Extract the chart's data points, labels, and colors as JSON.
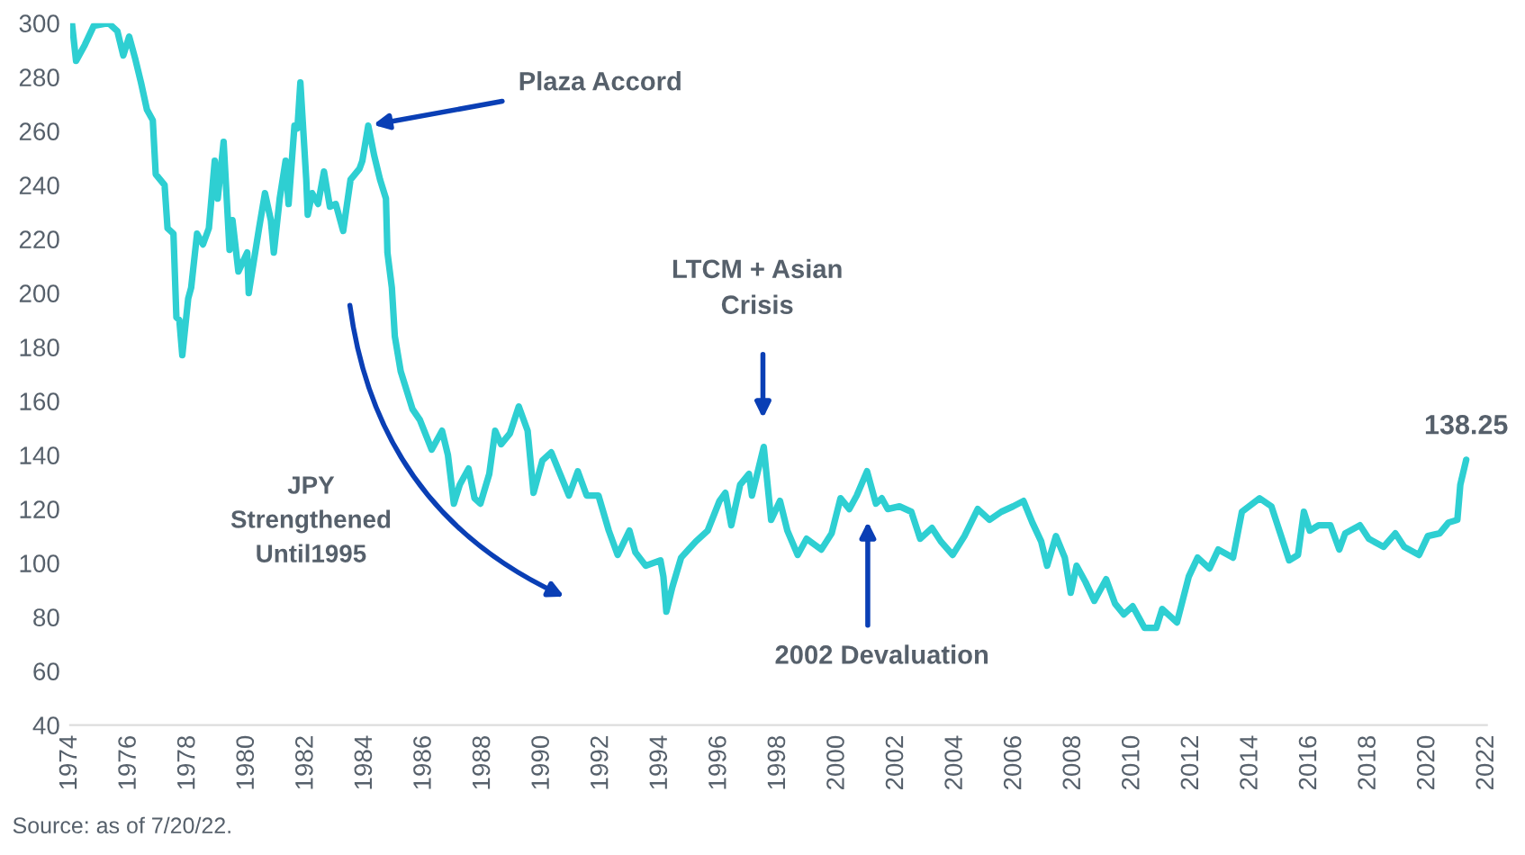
{
  "chart_data": {
    "type": "line",
    "x": [
      1974.06,
      1974.2,
      1974.5,
      1974.8,
      1975.3,
      1975.6,
      1975.8,
      1976.0,
      1976.2,
      1976.4,
      1976.6,
      1976.8,
      1976.9,
      1977.2,
      1977.3,
      1977.5,
      1977.6,
      1977.7,
      1977.8,
      1978.0,
      1978.1,
      1978.3,
      1978.5,
      1978.7,
      1978.9,
      1979.0,
      1979.2,
      1979.4,
      1979.5,
      1979.7,
      1980.0,
      1980.05,
      1980.4,
      1980.6,
      1980.8,
      1980.9,
      1981.1,
      1981.3,
      1981.4,
      1981.6,
      1981.7,
      1981.8,
      1982.0,
      1982.05,
      1982.2,
      1982.4,
      1982.6,
      1982.8,
      1983.0,
      1983.25,
      1983.5,
      1983.8,
      1983.9,
      1984.1,
      1984.3,
      1984.5,
      1984.7,
      1984.75,
      1984.9,
      1985.0,
      1985.2,
      1985.4,
      1985.6,
      1985.85,
      1986.25,
      1986.6,
      1986.8,
      1987.0,
      1987.2,
      1987.5,
      1987.7,
      1987.9,
      1988.2,
      1988.4,
      1988.6,
      1988.9,
      1989.2,
      1989.5,
      1989.7,
      1990.0,
      1990.3,
      1990.6,
      1990.9,
      1991.2,
      1991.5,
      1991.9,
      1992.25,
      1992.55,
      1992.95,
      1993.15,
      1993.5,
      1994.0,
      1994.1,
      1994.2,
      1994.4,
      1994.7,
      1995.2,
      1995.6,
      1996.0,
      1996.2,
      1996.4,
      1996.7,
      1997.0,
      1997.1,
      1997.5,
      1997.75,
      1998.05,
      1998.3,
      1998.65,
      1998.95,
      1999.45,
      1999.8,
      2000.1,
      2000.4,
      2000.65,
      2001.0,
      2001.3,
      2001.5,
      2001.7,
      2002.1,
      2002.5,
      2002.8,
      2003.2,
      2003.5,
      2003.9,
      2004.3,
      2004.75,
      2005.15,
      2005.55,
      2005.95,
      2006.3,
      2006.6,
      2006.9,
      2007.1,
      2007.4,
      2007.7,
      2007.9,
      2008.1,
      2008.4,
      2008.7,
      2009.1,
      2009.4,
      2009.7,
      2010.0,
      2010.4,
      2010.8,
      2011.0,
      2011.5,
      2011.9,
      2012.2,
      2012.6,
      2012.9,
      2013.4,
      2013.7,
      2014.3,
      2014.7,
      2015.0,
      2015.3,
      2015.6,
      2015.8,
      2016.0,
      2016.3,
      2016.7,
      2017.0,
      2017.2,
      2017.7,
      2018.0,
      2018.5,
      2018.9,
      2019.2,
      2019.7,
      2020.0,
      2020.4,
      2020.7,
      2021.0,
      2021.1,
      2021.3
    ],
    "series": [
      {
        "color": "#2ecfd2",
        "values": [
          300,
          286,
          292,
          299,
          300,
          297,
          288,
          295,
          287,
          278,
          268,
          264,
          244,
          240,
          224,
          222,
          191,
          190,
          177,
          198,
          202,
          222,
          218,
          224,
          249,
          235,
          256,
          216,
          227,
          208,
          215,
          200,
          224,
          237,
          227,
          215,
          235,
          249,
          233,
          262,
          261,
          278,
          242,
          229,
          237,
          233,
          245,
          232,
          233,
          223,
          242,
          246,
          249,
          262,
          251,
          242,
          235,
          215,
          202,
          184,
          171,
          164,
          157,
          153,
          142,
          149,
          140,
          122,
          129,
          135,
          124,
          122,
          133,
          149,
          144,
          148,
          158,
          149,
          126,
          138,
          141,
          133,
          125,
          134,
          125,
          125,
          112,
          103,
          112,
          104,
          99,
          101,
          95,
          82,
          91,
          102,
          108,
          112,
          123,
          126,
          114,
          129,
          133,
          125,
          143,
          116,
          123,
          112,
          103,
          109,
          105,
          111,
          124,
          120,
          125,
          134,
          122,
          124,
          120,
          121,
          119,
          109,
          113,
          108,
          103,
          110,
          120,
          116,
          119,
          121,
          123,
          115,
          108,
          99,
          110,
          102,
          89,
          99,
          93,
          86,
          94,
          85,
          81,
          84,
          76,
          76,
          83,
          78,
          95,
          102,
          98,
          105,
          102,
          119,
          124,
          121,
          111,
          101,
          103,
          119,
          112,
          114,
          114,
          105,
          111,
          114,
          109,
          106,
          111,
          106,
          103,
          110,
          111,
          115,
          116,
          129,
          138.25
        ],
        "value_labels": [
          null,
          null,
          null,
          null,
          null,
          null,
          null,
          null,
          null,
          null,
          null,
          null,
          null,
          null,
          null,
          null,
          null,
          null,
          null,
          null,
          null,
          null,
          null,
          null,
          null,
          null,
          null,
          null,
          null,
          null,
          null,
          null,
          null,
          null,
          null,
          null,
          null,
          null,
          null,
          null,
          null,
          null,
          null,
          null,
          null,
          null,
          null,
          null,
          null,
          null,
          null,
          null,
          null,
          null,
          null,
          null,
          null,
          null,
          null,
          null,
          null,
          null,
          null,
          null,
          null,
          null,
          null,
          null,
          null,
          null,
          null,
          null,
          null,
          null,
          null,
          null,
          null,
          null,
          null,
          null,
          null,
          null,
          null,
          null,
          null,
          null,
          null,
          null,
          null,
          null,
          null,
          null,
          null,
          null,
          null,
          null,
          null,
          null,
          null,
          null,
          null,
          null,
          null,
          null,
          null,
          null,
          null,
          null,
          null,
          null,
          null,
          null,
          null,
          null,
          null,
          null,
          null,
          null,
          null,
          null,
          null,
          null,
          null,
          null,
          null,
          null,
          null,
          null,
          null,
          null,
          null,
          null,
          null,
          null,
          null,
          null,
          null,
          null,
          null,
          null,
          null,
          null,
          null,
          null,
          null,
          null,
          null,
          null,
          null,
          null,
          null,
          null,
          null,
          null,
          null,
          null,
          null,
          null,
          null,
          null,
          null,
          null,
          null,
          null,
          null,
          null,
          null,
          null,
          null,
          null,
          null,
          null,
          null,
          null,
          null,
          null,
          "138.25"
        ]
      }
    ],
    "xlim": [
      1974,
      2022
    ],
    "xticks": [
      1974,
      1976,
      1978,
      1980,
      1982,
      1984,
      1986,
      1988,
      1990,
      1992,
      1994,
      1996,
      1998,
      2000,
      2002,
      2004,
      2006,
      2008,
      2010,
      2012,
      2014,
      2016,
      2018,
      2020,
      2022
    ],
    "ylim": [
      40,
      300
    ],
    "yticks": [
      40,
      60,
      80,
      100,
      120,
      140,
      160,
      180,
      200,
      220,
      240,
      260,
      280,
      300
    ],
    "grid": false,
    "annotations": [
      {
        "text": "Plaza Accord",
        "x": 1984.1,
        "y": 262
      },
      "LTCM + Asian\nCrisis",
      "2002 Devaluation",
      "JPY\nStrengthened\nUntil1995",
      "Source: as of 7/20/22."
    ]
  }
}
